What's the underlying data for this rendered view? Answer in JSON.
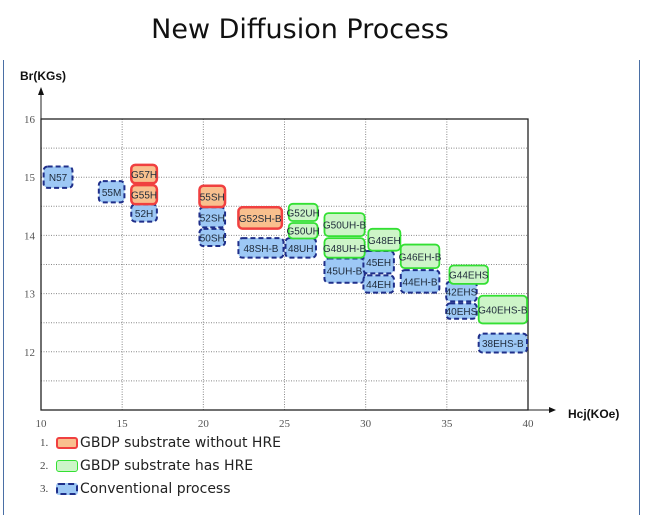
{
  "title": "New Diffusion Process",
  "chart_data": {
    "type": "range-box",
    "xlabel": "Hcj(KOe)",
    "ylabel": "Br(KGs)",
    "xlim": [
      10,
      40
    ],
    "ylim": [
      11,
      16
    ],
    "xticks": [
      10,
      15,
      20,
      25,
      30,
      35,
      40
    ],
    "yticks": [
      12,
      13,
      14,
      15,
      16
    ],
    "grid": true,
    "categories": [
      {
        "key": "red",
        "name": "GBDP substrate without HRE",
        "fill": "#f9c08e",
        "stroke": "#f04040",
        "dash": false
      },
      {
        "key": "green",
        "name": "GBDP substrate has HRE",
        "fill": "#cdf5c8",
        "stroke": "#33e033",
        "dash": false
      },
      {
        "key": "blue",
        "name": "Conventional process",
        "fill": "#9dc8f5",
        "stroke": "#1f2f8a",
        "dash": true
      }
    ],
    "grades": [
      {
        "label": "N57",
        "cat": "blue",
        "hcj": [
          10.1,
          12.0
        ],
        "br": [
          14.8,
          15.2
        ]
      },
      {
        "label": "55M",
        "cat": "blue",
        "hcj": [
          13.5,
          15.2
        ],
        "br": [
          14.55,
          14.95
        ]
      },
      {
        "label": "52H",
        "cat": "blue",
        "hcj": [
          15.5,
          17.2
        ],
        "br": [
          14.22,
          14.55
        ]
      },
      {
        "label": "G57H",
        "cat": "red",
        "hcj": [
          15.5,
          17.2
        ],
        "br": [
          14.88,
          15.23
        ]
      },
      {
        "label": "G55H",
        "cat": "red",
        "hcj": [
          15.5,
          17.2
        ],
        "br": [
          14.52,
          14.88
        ]
      },
      {
        "label": "52SH",
        "cat": "blue",
        "hcj": [
          19.7,
          21.4
        ],
        "br": [
          14.12,
          14.5
        ]
      },
      {
        "label": "50SH",
        "cat": "blue",
        "hcj": [
          19.7,
          21.4
        ],
        "br": [
          13.8,
          14.13
        ]
      },
      {
        "label": "55SH",
        "cat": "red",
        "hcj": [
          19.7,
          21.4
        ],
        "br": [
          14.47,
          14.87
        ]
      },
      {
        "label": "48SH-B",
        "cat": "blue",
        "hcj": [
          22.1,
          25.0
        ],
        "br": [
          13.6,
          13.97
        ]
      },
      {
        "label": "G52SH-B",
        "cat": "red",
        "hcj": [
          22.1,
          24.9
        ],
        "br": [
          14.1,
          14.5
        ]
      },
      {
        "label": "48UH",
        "cat": "blue",
        "hcj": [
          25.0,
          27.0
        ],
        "br": [
          13.6,
          13.97
        ]
      },
      {
        "label": "G52UH",
        "cat": "green",
        "hcj": [
          25.2,
          27.1
        ],
        "br": [
          14.23,
          14.56
        ]
      },
      {
        "label": "G50UH",
        "cat": "green",
        "hcj": [
          25.2,
          27.1
        ],
        "br": [
          13.93,
          14.23
        ]
      },
      {
        "label": "45UH-B",
        "cat": "blue",
        "hcj": [
          27.4,
          30.0
        ],
        "br": [
          13.17,
          13.62
        ]
      },
      {
        "label": "G50UH-B",
        "cat": "green",
        "hcj": [
          27.4,
          30.0
        ],
        "br": [
          13.97,
          14.4
        ]
      },
      {
        "label": "G48UH-B",
        "cat": "green",
        "hcj": [
          27.4,
          30.0
        ],
        "br": [
          13.6,
          13.97
        ]
      },
      {
        "label": "45EH",
        "cat": "blue",
        "hcj": [
          29.8,
          31.8
        ],
        "br": [
          13.33,
          13.75
        ]
      },
      {
        "label": "44EH",
        "cat": "blue",
        "hcj": [
          29.8,
          31.8
        ],
        "br": [
          13.0,
          13.33
        ]
      },
      {
        "label": "G48EH",
        "cat": "green",
        "hcj": [
          30.1,
          32.2
        ],
        "br": [
          13.72,
          14.13
        ]
      },
      {
        "label": "44EH-B",
        "cat": "blue",
        "hcj": [
          32.1,
          34.6
        ],
        "br": [
          13.0,
          13.42
        ]
      },
      {
        "label": "G46EH-B",
        "cat": "green",
        "hcj": [
          32.1,
          34.6
        ],
        "br": [
          13.42,
          13.86
        ]
      },
      {
        "label": "42EHS",
        "cat": "blue",
        "hcj": [
          34.9,
          36.9
        ],
        "br": [
          12.85,
          13.22
        ]
      },
      {
        "label": "40EHS",
        "cat": "blue",
        "hcj": [
          34.9,
          36.9
        ],
        "br": [
          12.55,
          12.85
        ]
      },
      {
        "label": "G44EHS",
        "cat": "green",
        "hcj": [
          35.1,
          37.6
        ],
        "br": [
          13.15,
          13.5
        ]
      },
      {
        "label": "G40EHS-B",
        "cat": "green",
        "hcj": [
          36.9,
          40.0
        ],
        "br": [
          12.47,
          12.98
        ]
      },
      {
        "label": "38EHS-B",
        "cat": "blue",
        "hcj": [
          36.9,
          40.0
        ],
        "br": [
          11.97,
          12.33
        ]
      }
    ]
  },
  "legend": [
    {
      "num": "1.",
      "label": "GBDP substrate without HRE"
    },
    {
      "num": "2.",
      "label": "GBDP substrate has HRE"
    },
    {
      "num": "3.",
      "label": "Conventional process"
    }
  ]
}
